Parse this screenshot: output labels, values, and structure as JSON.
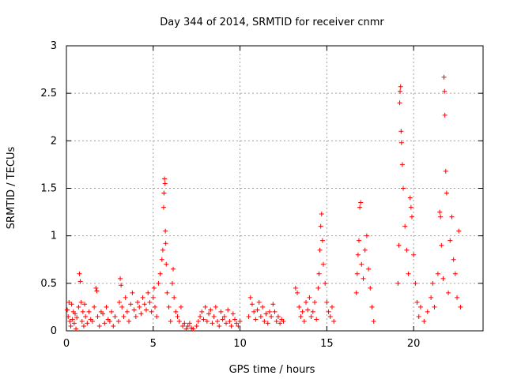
{
  "chart_data": {
    "type": "scatter",
    "title": "Day 344 of 2014, SRMTID for receiver cnmr",
    "xlabel": "GPS time / hours",
    "ylabel": "SRMTID / TECUs",
    "xlim": [
      0,
      24
    ],
    "ylim": [
      0,
      3
    ],
    "xticks": [
      0,
      5,
      10,
      15,
      20
    ],
    "xtick_labels": [
      "0",
      "5",
      "10",
      "15",
      "20"
    ],
    "yticks": [
      0,
      0.5,
      1,
      1.5,
      2,
      2.5,
      3
    ],
    "ytick_labels": [
      "0",
      "0.5",
      "1",
      "1.5",
      "2",
      "2.5",
      "3"
    ],
    "grid": true,
    "marker": "+",
    "color": "#ff0000",
    "series": [
      {
        "name": "SRMTID",
        "points": [
          [
            0.05,
            0.22
          ],
          [
            0.1,
            0.15
          ],
          [
            0.15,
            0.3
          ],
          [
            0.2,
            0.1
          ],
          [
            0.25,
            0.05
          ],
          [
            0.3,
            0.28
          ],
          [
            0.35,
            0.12
          ],
          [
            0.4,
            0.2
          ],
          [
            0.45,
            0.08
          ],
          [
            0.5,
            0.18
          ],
          [
            0.55,
            0.02
          ],
          [
            0.6,
            0.14
          ],
          [
            0.7,
            0.25
          ],
          [
            0.75,
            0.6
          ],
          [
            0.8,
            0.52
          ],
          [
            0.85,
            0.3
          ],
          [
            0.9,
            0.1
          ],
          [
            0.95,
            0.2
          ],
          [
            1.0,
            0.05
          ],
          [
            1.05,
            0.28
          ],
          [
            1.1,
            0.15
          ],
          [
            1.2,
            0.08
          ],
          [
            1.3,
            0.2
          ],
          [
            1.4,
            0.12
          ],
          [
            1.5,
            0.1
          ],
          [
            1.6,
            0.25
          ],
          [
            1.7,
            0.45
          ],
          [
            1.75,
            0.42
          ],
          [
            1.8,
            0.15
          ],
          [
            1.9,
            0.05
          ],
          [
            2.0,
            0.2
          ],
          [
            2.1,
            0.18
          ],
          [
            2.2,
            0.08
          ],
          [
            2.3,
            0.25
          ],
          [
            2.4,
            0.12
          ],
          [
            2.5,
            0.1
          ],
          [
            2.6,
            0.2
          ],
          [
            2.7,
            0.05
          ],
          [
            2.8,
            0.15
          ],
          [
            3.0,
            0.1
          ],
          [
            3.05,
            0.3
          ],
          [
            3.1,
            0.55
          ],
          [
            3.15,
            0.48
          ],
          [
            3.2,
            0.25
          ],
          [
            3.3,
            0.15
          ],
          [
            3.4,
            0.35
          ],
          [
            3.5,
            0.2
          ],
          [
            3.6,
            0.1
          ],
          [
            3.7,
            0.28
          ],
          [
            3.8,
            0.4
          ],
          [
            3.9,
            0.22
          ],
          [
            4.0,
            0.15
          ],
          [
            4.1,
            0.3
          ],
          [
            4.2,
            0.25
          ],
          [
            4.3,
            0.18
          ],
          [
            4.4,
            0.35
          ],
          [
            4.5,
            0.28
          ],
          [
            4.6,
            0.22
          ],
          [
            4.7,
            0.4
          ],
          [
            4.8,
            0.3
          ],
          [
            4.9,
            0.2
          ],
          [
            5.0,
            0.35
          ],
          [
            5.05,
            0.45
          ],
          [
            5.1,
            0.25
          ],
          [
            5.2,
            0.15
          ],
          [
            5.3,
            0.5
          ],
          [
            5.4,
            0.6
          ],
          [
            5.5,
            0.75
          ],
          [
            5.55,
            0.85
          ],
          [
            5.6,
            1.3
          ],
          [
            5.62,
            1.45
          ],
          [
            5.65,
            1.6
          ],
          [
            5.68,
            1.55
          ],
          [
            5.7,
            1.05
          ],
          [
            5.72,
            0.92
          ],
          [
            5.75,
            0.7
          ],
          [
            5.8,
            0.4
          ],
          [
            5.9,
            0.25
          ],
          [
            6.0,
            0.1
          ],
          [
            6.1,
            0.5
          ],
          [
            6.15,
            0.65
          ],
          [
            6.2,
            0.35
          ],
          [
            6.3,
            0.2
          ],
          [
            6.4,
            0.15
          ],
          [
            6.5,
            0.1
          ],
          [
            6.6,
            0.25
          ],
          [
            6.7,
            0.05
          ],
          [
            6.8,
            0.08
          ],
          [
            6.9,
            0.02
          ],
          [
            7.0,
            0.05
          ],
          [
            7.1,
            0.08
          ],
          [
            7.2,
            0.03
          ],
          [
            7.3,
            0.02
          ],
          [
            7.5,
            0.05
          ],
          [
            7.6,
            0.1
          ],
          [
            7.7,
            0.15
          ],
          [
            7.8,
            0.2
          ],
          [
            7.9,
            0.12
          ],
          [
            8.0,
            0.25
          ],
          [
            8.1,
            0.1
          ],
          [
            8.2,
            0.18
          ],
          [
            8.3,
            0.22
          ],
          [
            8.4,
            0.08
          ],
          [
            8.5,
            0.15
          ],
          [
            8.6,
            0.25
          ],
          [
            8.7,
            0.1
          ],
          [
            8.8,
            0.05
          ],
          [
            8.9,
            0.2
          ],
          [
            9.0,
            0.12
          ],
          [
            9.1,
            0.15
          ],
          [
            9.2,
            0.08
          ],
          [
            9.3,
            0.22
          ],
          [
            9.4,
            0.1
          ],
          [
            9.5,
            0.05
          ],
          [
            9.6,
            0.18
          ],
          [
            9.7,
            0.12
          ],
          [
            9.8,
            0.08
          ],
          [
            9.9,
            0.05
          ],
          [
            10.0,
            0.1
          ],
          [
            10.5,
            0.15
          ],
          [
            10.6,
            0.35
          ],
          [
            10.7,
            0.28
          ],
          [
            10.8,
            0.2
          ],
          [
            10.9,
            0.12
          ],
          [
            11.0,
            0.22
          ],
          [
            11.1,
            0.3
          ],
          [
            11.2,
            0.15
          ],
          [
            11.3,
            0.25
          ],
          [
            11.4,
            0.1
          ],
          [
            11.5,
            0.18
          ],
          [
            11.6,
            0.08
          ],
          [
            11.7,
            0.2
          ],
          [
            11.8,
            0.15
          ],
          [
            11.9,
            0.28
          ],
          [
            12.0,
            0.2
          ],
          [
            12.1,
            0.1
          ],
          [
            12.2,
            0.15
          ],
          [
            12.3,
            0.08
          ],
          [
            12.4,
            0.12
          ],
          [
            12.5,
            0.1
          ],
          [
            13.2,
            0.45
          ],
          [
            13.3,
            0.4
          ],
          [
            13.4,
            0.25
          ],
          [
            13.5,
            0.15
          ],
          [
            13.6,
            0.2
          ],
          [
            13.7,
            0.1
          ],
          [
            13.8,
            0.3
          ],
          [
            13.9,
            0.22
          ],
          [
            14.0,
            0.35
          ],
          [
            14.1,
            0.15
          ],
          [
            14.2,
            0.2
          ],
          [
            14.3,
            0.3
          ],
          [
            14.4,
            0.12
          ],
          [
            14.5,
            0.45
          ],
          [
            14.55,
            0.6
          ],
          [
            14.6,
            0.85
          ],
          [
            14.65,
            1.1
          ],
          [
            14.7,
            1.23
          ],
          [
            14.75,
            0.95
          ],
          [
            14.8,
            0.7
          ],
          [
            14.9,
            0.5
          ],
          [
            15.0,
            0.3
          ],
          [
            15.1,
            0.2
          ],
          [
            15.2,
            0.15
          ],
          [
            15.3,
            0.25
          ],
          [
            15.4,
            0.1
          ],
          [
            16.7,
            0.4
          ],
          [
            16.75,
            0.6
          ],
          [
            16.8,
            0.8
          ],
          [
            16.85,
            0.95
          ],
          [
            16.9,
            1.3
          ],
          [
            16.95,
            1.35
          ],
          [
            17.0,
            0.7
          ],
          [
            17.1,
            0.55
          ],
          [
            17.2,
            0.85
          ],
          [
            17.3,
            1.0
          ],
          [
            17.4,
            0.65
          ],
          [
            17.5,
            0.45
          ],
          [
            17.6,
            0.25
          ],
          [
            17.7,
            0.1
          ],
          [
            19.1,
            0.5
          ],
          [
            19.15,
            0.9
          ],
          [
            19.2,
            2.4
          ],
          [
            19.22,
            2.52
          ],
          [
            19.25,
            2.57
          ],
          [
            19.28,
            2.1
          ],
          [
            19.3,
            1.98
          ],
          [
            19.35,
            1.75
          ],
          [
            19.4,
            1.5
          ],
          [
            19.5,
            1.1
          ],
          [
            19.6,
            0.85
          ],
          [
            19.7,
            0.6
          ],
          [
            19.8,
            1.4
          ],
          [
            19.85,
            1.3
          ],
          [
            19.9,
            1.2
          ],
          [
            20.0,
            0.8
          ],
          [
            20.1,
            0.5
          ],
          [
            20.2,
            0.3
          ],
          [
            20.3,
            0.15
          ],
          [
            20.4,
            0.25
          ],
          [
            20.6,
            0.1
          ],
          [
            20.8,
            0.2
          ],
          [
            21.0,
            0.35
          ],
          [
            21.1,
            0.5
          ],
          [
            21.2,
            0.25
          ],
          [
            21.4,
            0.6
          ],
          [
            21.5,
            1.25
          ],
          [
            21.55,
            1.2
          ],
          [
            21.6,
            0.9
          ],
          [
            21.7,
            0.55
          ],
          [
            21.75,
            2.67
          ],
          [
            21.78,
            2.52
          ],
          [
            21.8,
            2.27
          ],
          [
            21.85,
            1.68
          ],
          [
            21.9,
            1.45
          ],
          [
            22.0,
            0.4
          ],
          [
            22.1,
            0.95
          ],
          [
            22.2,
            1.2
          ],
          [
            22.3,
            0.75
          ],
          [
            22.4,
            0.6
          ],
          [
            22.5,
            0.35
          ],
          [
            22.6,
            1.05
          ],
          [
            22.7,
            0.25
          ]
        ]
      }
    ]
  }
}
